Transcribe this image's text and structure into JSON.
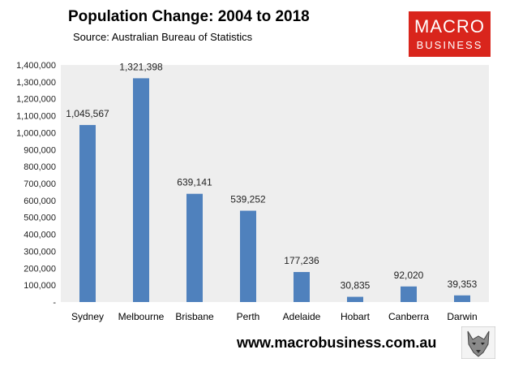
{
  "header": {
    "title": "Population Change: 2004 to 2018",
    "subtitle": "Source: Australian Bureau of Statistics"
  },
  "logo": {
    "line1": "MACRO",
    "line2": "BUSINESS",
    "bg_color": "#d9251c"
  },
  "footer": {
    "url": "www.macrobusiness.com.au",
    "wolf_icon": "wolf-head-icon"
  },
  "colors": {
    "bar": "#4f81bd",
    "plot_bg": "#eeeeee"
  },
  "chart_data": {
    "type": "bar",
    "title": "Population Change: 2004 to 2018",
    "xlabel": "",
    "ylabel": "",
    "ylim": [
      0,
      1400000
    ],
    "y_ticks": [
      0,
      100000,
      200000,
      300000,
      400000,
      500000,
      600000,
      700000,
      800000,
      900000,
      1000000,
      1100000,
      1200000,
      1300000,
      1400000
    ],
    "y_tick_labels": [
      "-",
      "100,000",
      "200,000",
      "300,000",
      "400,000",
      "500,000",
      "600,000",
      "700,000",
      "800,000",
      "900,000",
      "1,000,000",
      "1,100,000",
      "1,200,000",
      "1,300,000",
      "1,400,000"
    ],
    "categories": [
      "Sydney",
      "Melbourne",
      "Brisbane",
      "Perth",
      "Adelaide",
      "Hobart",
      "Canberra",
      "Darwin"
    ],
    "values": [
      1045567,
      1321398,
      639141,
      539252,
      177236,
      30835,
      92020,
      39353
    ],
    "data_labels": [
      "1,045,567",
      "1,321,398",
      "639,141",
      "539,252",
      "177,236",
      "30,835",
      "92,020",
      "39,353"
    ],
    "grid": false,
    "legend": "none"
  }
}
